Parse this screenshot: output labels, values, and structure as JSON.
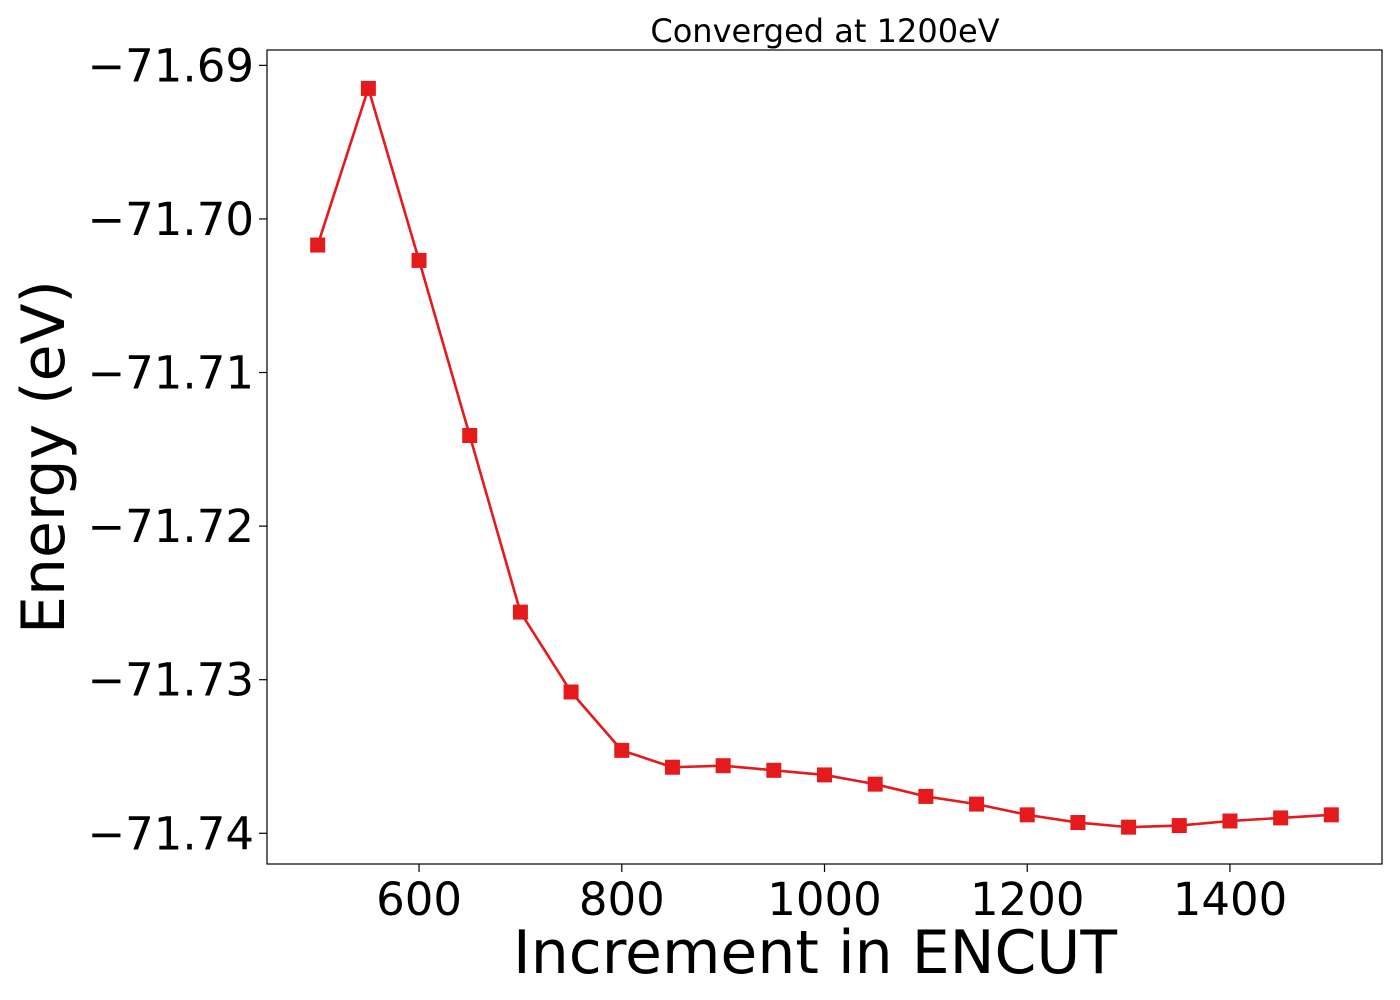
{
  "chart_data": {
    "type": "line",
    "title": "Converged at 1200eV",
    "xlabel": "Increment in ENCUT",
    "ylabel": "Energy (eV)",
    "xlim": [
      450,
      1550
    ],
    "ylim": [
      -71.742,
      -71.689
    ],
    "grid": false,
    "legend": "none",
    "color": "#e41a1c",
    "marker": "square",
    "x_ticks": [
      600,
      800,
      1000,
      1200,
      1400
    ],
    "x_tick_labels": [
      "600",
      "800",
      "1000",
      "1200",
      "1400"
    ],
    "y_ticks": [
      -71.69,
      -71.7,
      -71.71,
      -71.72,
      -71.73,
      -71.74
    ],
    "y_tick_labels": [
      "−71.69",
      "−71.70",
      "−71.71",
      "−71.72",
      "−71.73",
      "−71.74"
    ],
    "series": [
      {
        "x": [
          500,
          550,
          600,
          650,
          700,
          750,
          800,
          850,
          900,
          950,
          1000,
          1050,
          1100,
          1150,
          1200,
          1250,
          1300,
          1350,
          1400,
          1450,
          1500
        ],
        "y": [
          -71.7017,
          -71.6915,
          -71.7027,
          -71.7141,
          -71.7256,
          -71.7308,
          -71.7346,
          -71.7357,
          -71.7356,
          -71.7359,
          -71.7362,
          -71.7368,
          -71.7376,
          -71.7381,
          -71.7388,
          -71.7393,
          -71.7396,
          -71.7395,
          -71.7392,
          -71.739,
          -71.7388
        ]
      }
    ]
  }
}
